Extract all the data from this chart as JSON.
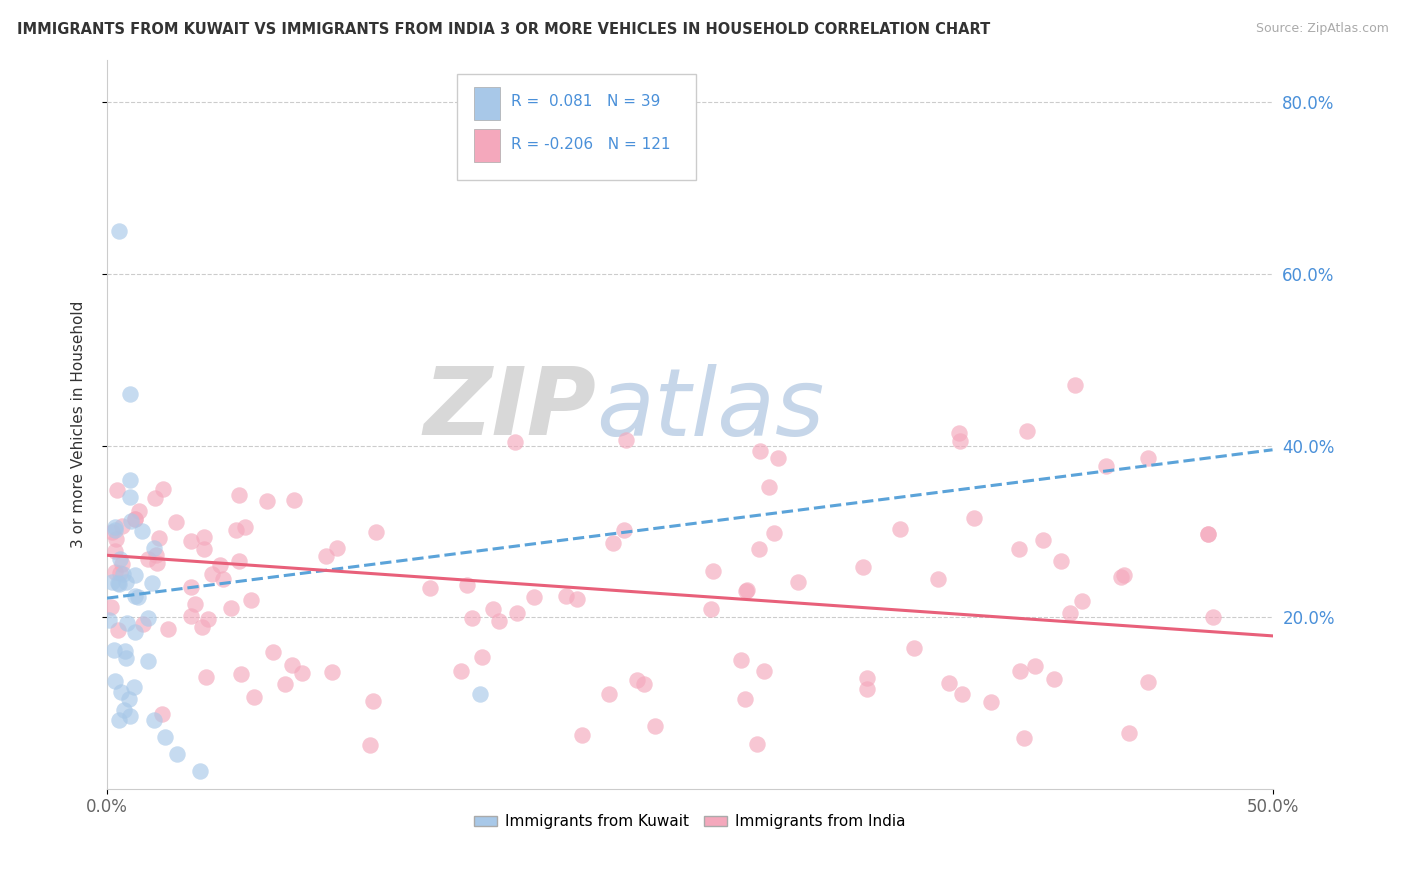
{
  "title": "IMMIGRANTS FROM KUWAIT VS IMMIGRANTS FROM INDIA 3 OR MORE VEHICLES IN HOUSEHOLD CORRELATION CHART",
  "source": "Source: ZipAtlas.com",
  "ylabel": "3 or more Vehicles in Household",
  "xlim": [
    0.0,
    0.5
  ],
  "ylim": [
    0.0,
    0.85
  ],
  "yticks": [
    0.2,
    0.4,
    0.6,
    0.8
  ],
  "ytick_labels_right": [
    "20.0%",
    "40.0%",
    "60.0%",
    "80.0%"
  ],
  "xtick_labels": [
    "0.0%",
    "50.0%"
  ],
  "r_kuwait": 0.081,
  "n_kuwait": 39,
  "r_india": -0.206,
  "n_india": 121,
  "color_kuwait": "#a8c8e8",
  "color_india": "#f4a8bc",
  "line_color_kuwait": "#5ba3d9",
  "line_color_india": "#e8607a",
  "watermark_zip": "ZIP",
  "watermark_atlas": "atlas",
  "legend_labels": [
    "Immigrants from Kuwait",
    "Immigrants from India"
  ],
  "kuwait_line_start_y": 0.222,
  "kuwait_line_end_y": 0.395,
  "kuwait_line_end_x": 0.5,
  "india_line_start_y": 0.272,
  "india_line_end_y": 0.178,
  "india_line_end_x": 0.5
}
